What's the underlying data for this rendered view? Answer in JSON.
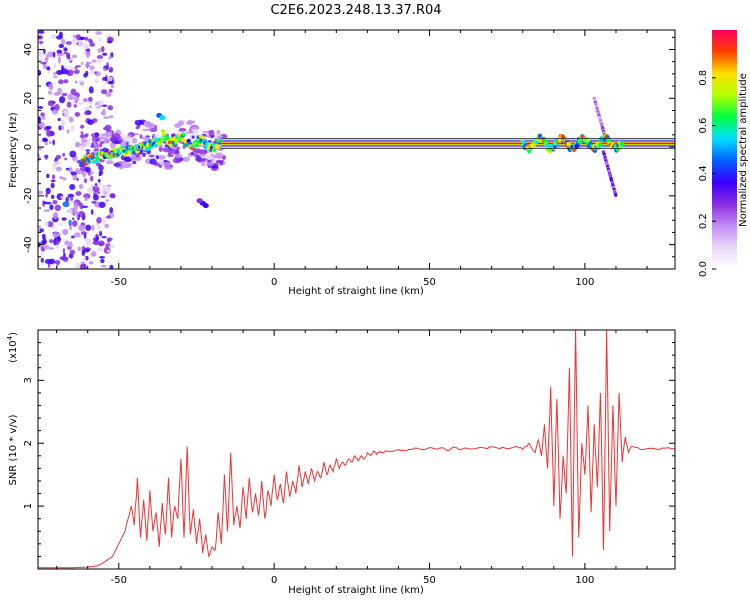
{
  "figure": {
    "title": "C2E6.2023.248.13.37.R04"
  },
  "chart_data": [
    {
      "type": "heatmap",
      "xlabel": "Height of straight line (km)",
      "ylabel": "Frequency (Hz)",
      "xlim": [
        -76,
        129
      ],
      "ylim": [
        -50,
        48
      ],
      "xticks": [
        -50,
        0,
        50,
        100
      ],
      "yticks": [
        40,
        20,
        0,
        -20,
        -40
      ],
      "band": {
        "center_hz": 1.5,
        "x_start": -17,
        "x_end": 129
      },
      "colorbar": {
        "label": "Normalized spectral amplitude",
        "range": [
          0.0,
          1.0
        ],
        "ticks": [
          "0.0",
          "0.2",
          "0.4",
          "0.6",
          "0.8"
        ],
        "colormap": [
          "#ffffff",
          "#e8d8f8",
          "#c28af5",
          "#8a2be2",
          "#3a00ff",
          "#0060ff",
          "#00e0ff",
          "#00ff40",
          "#b0ff00",
          "#ffe000",
          "#ff4000",
          "#ff0060"
        ]
      }
    },
    {
      "type": "line",
      "xlabel": "Height of straight line (km)",
      "ylabel": "SNR (10 * v/v)",
      "scale_label": "(x10",
      "scale_exp": "4",
      "scale_close": ")",
      "xlim": [
        -76,
        129
      ],
      "ylim": [
        0,
        3.8
      ],
      "xticks": [
        -50,
        0,
        50,
        100
      ],
      "yticks": [
        1,
        2,
        3
      ],
      "series": [
        {
          "color": "#ee3333",
          "x": [
            -76,
            -65,
            -60,
            -57,
            -55,
            -52,
            -50,
            -48,
            -46,
            -45,
            -44,
            -43,
            -42,
            -41,
            -40,
            -39,
            -38,
            -37,
            -36,
            -35,
            -34,
            -33,
            -32,
            -31,
            -30,
            -29,
            -28,
            -27,
            -26,
            -25,
            -24,
            -23,
            -22,
            -21,
            -20,
            -19,
            -18,
            -17,
            -16,
            -15,
            -14,
            -13,
            -12,
            -11,
            -10,
            -9,
            -8,
            -7,
            -6,
            -5,
            -4,
            -3,
            -2,
            -1,
            0,
            1,
            2,
            3,
            4,
            5,
            6,
            7,
            8,
            9,
            10,
            11,
            12,
            13,
            14,
            15,
            16,
            17,
            18,
            19,
            20,
            21,
            22,
            23,
            24,
            25,
            26,
            27,
            28,
            29,
            30,
            31,
            32,
            33,
            34,
            35,
            36,
            38,
            40,
            42,
            44,
            46,
            48,
            50,
            52,
            54,
            56,
            58,
            60,
            62,
            64,
            66,
            68,
            70,
            72,
            74,
            76,
            78,
            80,
            82,
            84,
            85,
            86,
            87,
            88,
            89,
            90,
            91,
            92,
            93,
            94,
            95,
            96,
            97,
            98,
            99,
            100,
            101,
            102,
            103,
            104,
            105,
            106,
            107,
            108,
            109,
            110,
            111,
            112,
            113,
            114,
            115,
            118,
            121,
            124,
            127,
            129
          ],
          "y": [
            0.02,
            0.02,
            0.03,
            0.05,
            0.1,
            0.2,
            0.4,
            0.6,
            1.0,
            0.7,
            1.45,
            0.5,
            1.1,
            0.45,
            1.25,
            0.6,
            0.9,
            0.35,
            1.05,
            0.55,
            1.45,
            0.5,
            1.0,
            0.8,
            1.75,
            0.5,
            1.95,
            0.55,
            0.95,
            0.4,
            0.8,
            0.25,
            0.55,
            0.2,
            0.35,
            0.3,
            0.9,
            0.4,
            1.5,
            0.6,
            1.85,
            0.7,
            1.0,
            0.65,
            1.3,
            0.8,
            1.45,
            0.9,
            1.2,
            0.85,
            1.4,
            0.8,
            1.25,
            1.0,
            1.5,
            1.1,
            1.35,
            1.05,
            1.55,
            1.15,
            1.4,
            1.2,
            1.65,
            1.3,
            1.55,
            1.35,
            1.6,
            1.4,
            1.55,
            1.45,
            1.7,
            1.5,
            1.65,
            1.55,
            1.75,
            1.6,
            1.7,
            1.65,
            1.75,
            1.7,
            1.8,
            1.72,
            1.8,
            1.75,
            1.85,
            1.8,
            1.88,
            1.82,
            1.87,
            1.85,
            1.88,
            1.87,
            1.9,
            1.88,
            1.9,
            1.92,
            1.9,
            1.93,
            1.91,
            1.93,
            1.88,
            1.94,
            1.9,
            1.92,
            1.91,
            1.93,
            1.92,
            1.94,
            1.92,
            1.93,
            1.92,
            1.95,
            1.9,
            2.0,
            1.85,
            2.05,
            1.8,
            2.3,
            1.6,
            2.9,
            1.0,
            2.7,
            0.8,
            1.8,
            1.2,
            3.2,
            0.2,
            3.8,
            0.5,
            2.0,
            1.5,
            2.6,
            0.9,
            2.3,
            1.3,
            2.8,
            0.3,
            3.8,
            0.6,
            2.6,
            1.0,
            2.8,
            1.7,
            2.1,
            1.85,
            1.95,
            1.9,
            1.92,
            1.9,
            1.93,
            1.91
          ]
        }
      ]
    }
  ]
}
